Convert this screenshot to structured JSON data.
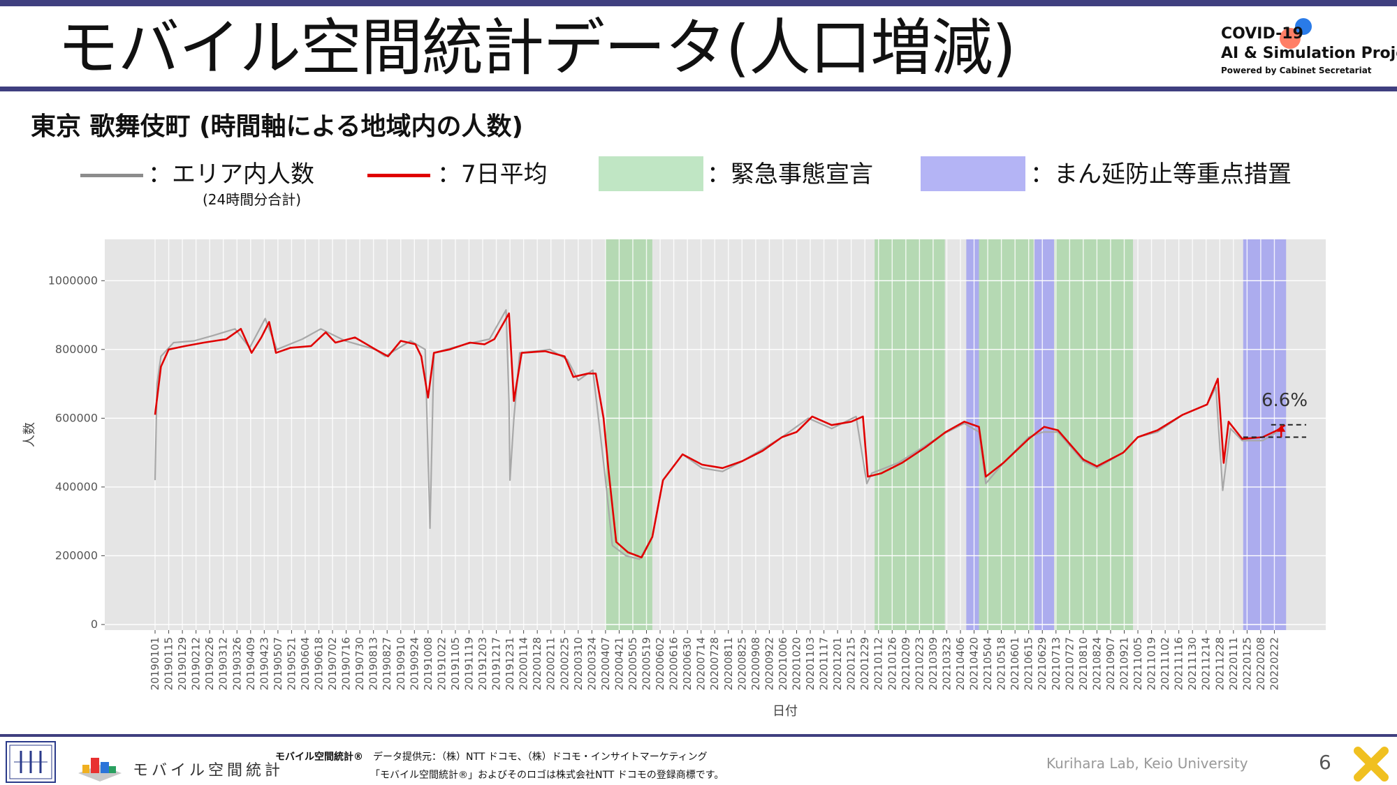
{
  "header": {
    "title": "モバイル空間統計データ(人口増減)",
    "logo_line1": "COVID-19",
    "logo_line2": "AI & Simulation Project",
    "logo_line3": "Powered by Cabinet Secretariat"
  },
  "subtitle": "東京 歌舞伎町 (時間軸による地域内の人数)",
  "legend": {
    "daily_label": "：エリア内人数",
    "daily_sub": "(24時間分合計)",
    "avg_label": "：7日平均",
    "emergency_label": "：緊急事態宣言",
    "priority_label": "：まん延防止等重点措置",
    "colors": {
      "daily": "#8c8c8c",
      "avg": "#e00000",
      "emergency": "#c0e6c4",
      "priority": "#b4b4f5"
    }
  },
  "chart_data": {
    "type": "line",
    "xlabel": "日付",
    "ylabel": "人数",
    "ylim": [
      0,
      1100000
    ],
    "yticks": [
      0,
      200000,
      400000,
      600000,
      800000,
      1000000
    ],
    "ytick_labels": [
      "0",
      "200000",
      "400000",
      "600000",
      "800000",
      "1000000"
    ],
    "xlim": [
      "2019-01-01",
      "2022-03-08"
    ],
    "xtick_labels": [
      "20190101",
      "20190115",
      "20190129",
      "20190212",
      "20190226",
      "20190312",
      "20190326",
      "20190409",
      "20190423",
      "20190507",
      "20190521",
      "20190604",
      "20190618",
      "20190702",
      "20190716",
      "20190730",
      "20190813",
      "20190827",
      "20190910",
      "20190924",
      "20191008",
      "20191022",
      "20191105",
      "20191119",
      "20191203",
      "20191217",
      "20191231",
      "20200114",
      "20200128",
      "20200211",
      "20200225",
      "20200310",
      "20200324",
      "20200407",
      "20200421",
      "20200505",
      "20200519",
      "20200602",
      "20200616",
      "20200630",
      "20200714",
      "20200728",
      "20200811",
      "20200825",
      "20200908",
      "20200922",
      "20201006",
      "20201020",
      "20201103",
      "20201117",
      "20201201",
      "20201215",
      "20201229",
      "20210112",
      "20210126",
      "20210209",
      "20210223",
      "20210309",
      "20210323",
      "20210406",
      "20210420",
      "20210504",
      "20210518",
      "20210601",
      "20210615",
      "20210629",
      "20210713",
      "20210727",
      "20210810",
      "20210824",
      "20210907",
      "20210921",
      "20211005",
      "20211019",
      "20211102",
      "20211116",
      "20211130",
      "20211214",
      "20211228",
      "20220111",
      "20220125",
      "20220208",
      "20220222"
    ],
    "series": [
      {
        "color": "#a8a8a8",
        "points": [
          [
            "2019-01-01",
            420000
          ],
          [
            "2019-01-03",
            700000
          ],
          [
            "2019-01-07",
            780000
          ],
          [
            "2019-01-20",
            820000
          ],
          [
            "2019-02-10",
            825000
          ],
          [
            "2019-03-01",
            840000
          ],
          [
            "2019-03-24",
            860000
          ],
          [
            "2019-04-08",
            805000
          ],
          [
            "2019-04-24",
            890000
          ],
          [
            "2019-05-06",
            800000
          ],
          [
            "2019-06-01",
            830000
          ],
          [
            "2019-06-20",
            860000
          ],
          [
            "2019-07-15",
            825000
          ],
          [
            "2019-08-15",
            800000
          ],
          [
            "2019-08-25",
            780000
          ],
          [
            "2019-09-20",
            825000
          ],
          [
            "2019-10-05",
            800000
          ],
          [
            "2019-10-10",
            280000
          ],
          [
            "2019-10-14",
            790000
          ],
          [
            "2019-11-15",
            815000
          ],
          [
            "2019-12-10",
            830000
          ],
          [
            "2019-12-27",
            915000
          ],
          [
            "2019-12-30",
            650000
          ],
          [
            "2019-12-31",
            420000
          ],
          [
            "2020-01-04",
            600000
          ],
          [
            "2020-01-10",
            790000
          ],
          [
            "2020-02-10",
            800000
          ],
          [
            "2020-02-28",
            770000
          ],
          [
            "2020-03-10",
            710000
          ],
          [
            "2020-03-25",
            740000
          ],
          [
            "2020-04-01",
            570000
          ],
          [
            "2020-04-07",
            420000
          ],
          [
            "2020-04-14",
            230000
          ],
          [
            "2020-04-28",
            200000
          ],
          [
            "2020-05-12",
            190000
          ],
          [
            "2020-05-25",
            255000
          ],
          [
            "2020-06-05",
            420000
          ],
          [
            "2020-06-25",
            495000
          ],
          [
            "2020-07-15",
            455000
          ],
          [
            "2020-08-05",
            445000
          ],
          [
            "2020-08-25",
            475000
          ],
          [
            "2020-09-15",
            510000
          ],
          [
            "2020-10-05",
            545000
          ],
          [
            "2020-11-01",
            600000
          ],
          [
            "2020-11-25",
            570000
          ],
          [
            "2020-12-20",
            605000
          ],
          [
            "2020-12-31",
            410000
          ],
          [
            "2021-01-05",
            440000
          ],
          [
            "2021-02-01",
            470000
          ],
          [
            "2021-03-01",
            520000
          ],
          [
            "2021-03-20",
            555000
          ],
          [
            "2021-04-10",
            585000
          ],
          [
            "2021-04-25",
            560000
          ],
          [
            "2021-05-02",
            410000
          ],
          [
            "2021-05-20",
            470000
          ],
          [
            "2021-06-15",
            545000
          ],
          [
            "2021-06-30",
            560000
          ],
          [
            "2021-07-15",
            560000
          ],
          [
            "2021-08-10",
            475000
          ],
          [
            "2021-08-24",
            455000
          ],
          [
            "2021-09-20",
            500000
          ],
          [
            "2021-10-05",
            545000
          ],
          [
            "2021-10-25",
            560000
          ],
          [
            "2021-11-20",
            610000
          ],
          [
            "2021-12-15",
            640000
          ],
          [
            "2021-12-24",
            690000
          ],
          [
            "2021-12-31",
            390000
          ],
          [
            "2022-01-08",
            570000
          ],
          [
            "2022-01-20",
            535000
          ],
          [
            "2022-02-10",
            535000
          ],
          [
            "2022-02-25",
            560000
          ],
          [
            "2022-03-01",
            580000
          ]
        ]
      },
      {
        "color": "#e00000",
        "points": [
          [
            "2019-01-01",
            610000
          ],
          [
            "2019-01-07",
            750000
          ],
          [
            "2019-01-15",
            800000
          ],
          [
            "2019-02-01",
            810000
          ],
          [
            "2019-02-20",
            820000
          ],
          [
            "2019-03-15",
            830000
          ],
          [
            "2019-03-30",
            860000
          ],
          [
            "2019-04-10",
            790000
          ],
          [
            "2019-04-20",
            835000
          ],
          [
            "2019-04-28",
            880000
          ],
          [
            "2019-05-05",
            790000
          ],
          [
            "2019-05-20",
            805000
          ],
          [
            "2019-06-10",
            810000
          ],
          [
            "2019-06-25",
            850000
          ],
          [
            "2019-07-05",
            820000
          ],
          [
            "2019-07-25",
            835000
          ],
          [
            "2019-08-15",
            800000
          ],
          [
            "2019-08-28",
            780000
          ],
          [
            "2019-09-10",
            825000
          ],
          [
            "2019-09-25",
            815000
          ],
          [
            "2019-10-01",
            780000
          ],
          [
            "2019-10-08",
            660000
          ],
          [
            "2019-10-14",
            790000
          ],
          [
            "2019-10-30",
            800000
          ],
          [
            "2019-11-20",
            820000
          ],
          [
            "2019-12-05",
            815000
          ],
          [
            "2019-12-15",
            830000
          ],
          [
            "2019-12-30",
            905000
          ],
          [
            "2020-01-04",
            650000
          ],
          [
            "2020-01-12",
            790000
          ],
          [
            "2020-02-05",
            795000
          ],
          [
            "2020-02-25",
            780000
          ],
          [
            "2020-03-05",
            720000
          ],
          [
            "2020-03-20",
            730000
          ],
          [
            "2020-03-28",
            730000
          ],
          [
            "2020-04-05",
            600000
          ],
          [
            "2020-04-10",
            450000
          ],
          [
            "2020-04-18",
            240000
          ],
          [
            "2020-04-30",
            210000
          ],
          [
            "2020-05-14",
            195000
          ],
          [
            "2020-05-25",
            255000
          ],
          [
            "2020-06-05",
            420000
          ],
          [
            "2020-06-25",
            495000
          ],
          [
            "2020-07-15",
            465000
          ],
          [
            "2020-08-05",
            455000
          ],
          [
            "2020-08-25",
            475000
          ],
          [
            "2020-09-15",
            505000
          ],
          [
            "2020-10-05",
            545000
          ],
          [
            "2020-10-20",
            560000
          ],
          [
            "2020-11-05",
            605000
          ],
          [
            "2020-11-25",
            580000
          ],
          [
            "2020-12-15",
            590000
          ],
          [
            "2020-12-27",
            605000
          ],
          [
            "2021-01-01",
            430000
          ],
          [
            "2021-01-15",
            440000
          ],
          [
            "2021-02-05",
            470000
          ],
          [
            "2021-03-01",
            515000
          ],
          [
            "2021-03-22",
            560000
          ],
          [
            "2021-04-10",
            590000
          ],
          [
            "2021-04-25",
            575000
          ],
          [
            "2021-05-02",
            430000
          ],
          [
            "2021-05-20",
            470000
          ],
          [
            "2021-06-15",
            540000
          ],
          [
            "2021-07-01",
            575000
          ],
          [
            "2021-07-15",
            565000
          ],
          [
            "2021-08-10",
            480000
          ],
          [
            "2021-08-24",
            460000
          ],
          [
            "2021-09-20",
            500000
          ],
          [
            "2021-10-05",
            545000
          ],
          [
            "2021-10-25",
            565000
          ],
          [
            "2021-11-20",
            610000
          ],
          [
            "2021-12-15",
            640000
          ],
          [
            "2021-12-26",
            715000
          ],
          [
            "2022-01-01",
            470000
          ],
          [
            "2022-01-06",
            590000
          ],
          [
            "2022-01-20",
            540000
          ],
          [
            "2022-02-10",
            545000
          ],
          [
            "2022-02-25",
            565000
          ],
          [
            "2022-03-05",
            580000
          ]
        ]
      }
    ],
    "shaded_regions": [
      {
        "kind": "emergency",
        "start": "2020-04-07",
        "end": "2020-05-25"
      },
      {
        "kind": "emergency",
        "start": "2021-01-08",
        "end": "2021-03-21"
      },
      {
        "kind": "priority",
        "start": "2021-04-12",
        "end": "2021-04-25"
      },
      {
        "kind": "emergency",
        "start": "2021-04-25",
        "end": "2021-06-20"
      },
      {
        "kind": "priority",
        "start": "2021-06-21",
        "end": "2021-07-11"
      },
      {
        "kind": "emergency",
        "start": "2021-07-12",
        "end": "2021-09-30"
      },
      {
        "kind": "priority",
        "start": "2022-01-21",
        "end": "2022-03-06"
      }
    ],
    "annotation": {
      "text": "6.6%",
      "from_value": 545000,
      "to_value": 581000
    }
  },
  "footer": {
    "logo_text": "モバイル空間統計",
    "brand": "モバイル空間統計®",
    "provider": "データ提供元：（株）NTT ドコモ、（株）ドコモ・インサイトマーケティング",
    "trademark": "「モバイル空間統計®」およびそのロゴは株式会社NTT ドコモの登録商標です。",
    "lab": "Kurihara Lab, Keio University",
    "page": "6"
  }
}
